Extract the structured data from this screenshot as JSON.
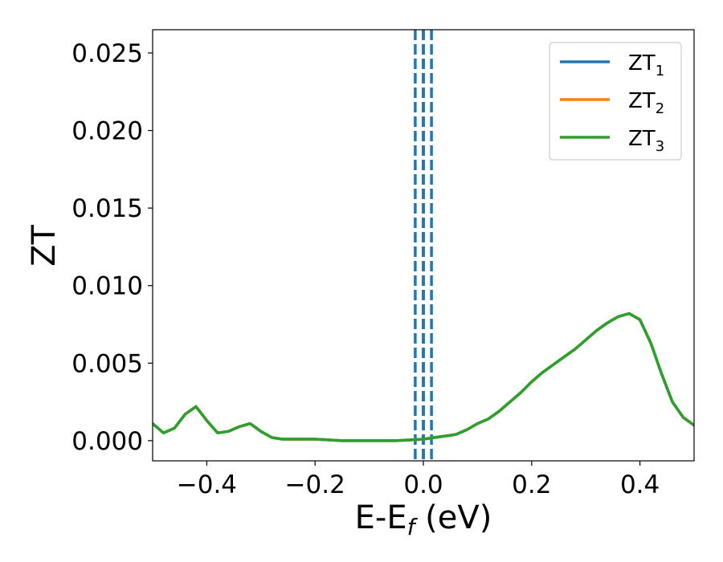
{
  "chart_data": {
    "type": "line",
    "xlabel": {
      "main": "E-E",
      "sub": "f",
      "suffix": " (eV)"
    },
    "ylabel": "ZT",
    "xlim": [
      -0.5,
      0.5
    ],
    "ylim": [
      -0.0013,
      0.0265
    ],
    "x_ticks": [
      -0.4,
      -0.2,
      0.0,
      0.2,
      0.4
    ],
    "x_tick_labels": [
      "−0.4",
      "−0.2",
      "0.0",
      "0.2",
      "0.4"
    ],
    "y_ticks": [
      0.0,
      0.005,
      0.01,
      0.015,
      0.02,
      0.025
    ],
    "y_tick_labels": [
      "0.000",
      "0.005",
      "0.010",
      "0.015",
      "0.020",
      "0.025"
    ],
    "grid": false,
    "legend_position": "top-right",
    "series": [
      {
        "name": "ZT1",
        "name_main": "ZT",
        "name_sub": "1",
        "color": "#1f77b4",
        "x": [
          -0.5,
          -0.48,
          -0.46,
          -0.44,
          -0.42,
          -0.4,
          -0.38,
          -0.36,
          -0.34,
          -0.32,
          -0.3,
          -0.28,
          -0.26,
          -0.24,
          -0.22,
          -0.2,
          -0.15,
          -0.1,
          -0.05,
          0.0,
          0.02,
          0.04,
          0.06,
          0.08,
          0.1,
          0.12,
          0.14,
          0.16,
          0.18,
          0.2,
          0.22,
          0.24,
          0.26,
          0.28,
          0.3,
          0.32,
          0.34,
          0.36,
          0.38,
          0.4,
          0.42,
          0.44,
          0.46,
          0.48,
          0.5
        ],
        "y": [
          0.0011,
          0.0005,
          0.0008,
          0.0017,
          0.0022,
          0.0013,
          0.0005,
          0.0006,
          0.0009,
          0.0011,
          0.0006,
          0.0002,
          0.0001,
          0.0001,
          0.0001,
          0.0001,
          0.0,
          0.0,
          0.0,
          0.0001,
          0.0002,
          0.0003,
          0.0004,
          0.0007,
          0.0011,
          0.0014,
          0.0019,
          0.0025,
          0.0031,
          0.0038,
          0.0044,
          0.0049,
          0.0054,
          0.0059,
          0.0065,
          0.0071,
          0.0076,
          0.008,
          0.0082,
          0.0078,
          0.0063,
          0.0043,
          0.0025,
          0.0015,
          0.001
        ]
      },
      {
        "name": "ZT2",
        "name_main": "ZT",
        "name_sub": "2",
        "color": "#ff7f0e",
        "x": [
          -0.5,
          -0.48,
          -0.46,
          -0.44,
          -0.42,
          -0.4,
          -0.38,
          -0.36,
          -0.34,
          -0.32,
          -0.3,
          -0.28,
          -0.26,
          -0.24,
          -0.22,
          -0.2,
          -0.15,
          -0.1,
          -0.05,
          0.0,
          0.02,
          0.04,
          0.06,
          0.08,
          0.1,
          0.12,
          0.14,
          0.16,
          0.18,
          0.2,
          0.22,
          0.24,
          0.26,
          0.28,
          0.3,
          0.32,
          0.34,
          0.36,
          0.38,
          0.4,
          0.42,
          0.44,
          0.46,
          0.48,
          0.5
        ],
        "y": [
          0.0011,
          0.0005,
          0.0008,
          0.0017,
          0.0022,
          0.0013,
          0.0005,
          0.0006,
          0.0009,
          0.0011,
          0.0006,
          0.0002,
          0.0001,
          0.0001,
          0.0001,
          0.0001,
          0.0,
          0.0,
          0.0,
          0.0001,
          0.0002,
          0.0003,
          0.0004,
          0.0007,
          0.0011,
          0.0014,
          0.0019,
          0.0025,
          0.0031,
          0.0038,
          0.0044,
          0.0049,
          0.0054,
          0.0059,
          0.0065,
          0.0071,
          0.0076,
          0.008,
          0.0082,
          0.0078,
          0.0063,
          0.0043,
          0.0025,
          0.0015,
          0.001
        ]
      },
      {
        "name": "ZT3",
        "name_main": "ZT",
        "name_sub": "3",
        "color": "#2ca02c",
        "x": [
          -0.5,
          -0.48,
          -0.46,
          -0.44,
          -0.42,
          -0.4,
          -0.38,
          -0.36,
          -0.34,
          -0.32,
          -0.3,
          -0.28,
          -0.26,
          -0.24,
          -0.22,
          -0.2,
          -0.15,
          -0.1,
          -0.05,
          0.0,
          0.02,
          0.04,
          0.06,
          0.08,
          0.1,
          0.12,
          0.14,
          0.16,
          0.18,
          0.2,
          0.22,
          0.24,
          0.26,
          0.28,
          0.3,
          0.32,
          0.34,
          0.36,
          0.38,
          0.4,
          0.42,
          0.44,
          0.46,
          0.48,
          0.5
        ],
        "y": [
          0.0011,
          0.0005,
          0.0008,
          0.0017,
          0.0022,
          0.0013,
          0.0005,
          0.0006,
          0.0009,
          0.0011,
          0.0006,
          0.0002,
          0.0001,
          0.0001,
          0.0001,
          0.0001,
          0.0,
          0.0,
          0.0,
          0.0001,
          0.0002,
          0.0003,
          0.0004,
          0.0007,
          0.0011,
          0.0014,
          0.0019,
          0.0025,
          0.0031,
          0.0038,
          0.0044,
          0.0049,
          0.0054,
          0.0059,
          0.0065,
          0.0071,
          0.0076,
          0.008,
          0.0082,
          0.0078,
          0.0063,
          0.0043,
          0.0025,
          0.0015,
          0.001
        ]
      }
    ],
    "vertical_lines": [
      {
        "x": 0.0,
        "color": "#000000",
        "style": "dashed"
      },
      {
        "x": -0.015,
        "color": "#1f77b4",
        "style": "dashed"
      },
      {
        "x": 0.0,
        "color": "#1f77b4",
        "style": "dashed"
      },
      {
        "x": 0.015,
        "color": "#1f77b4",
        "style": "dashed"
      }
    ]
  }
}
